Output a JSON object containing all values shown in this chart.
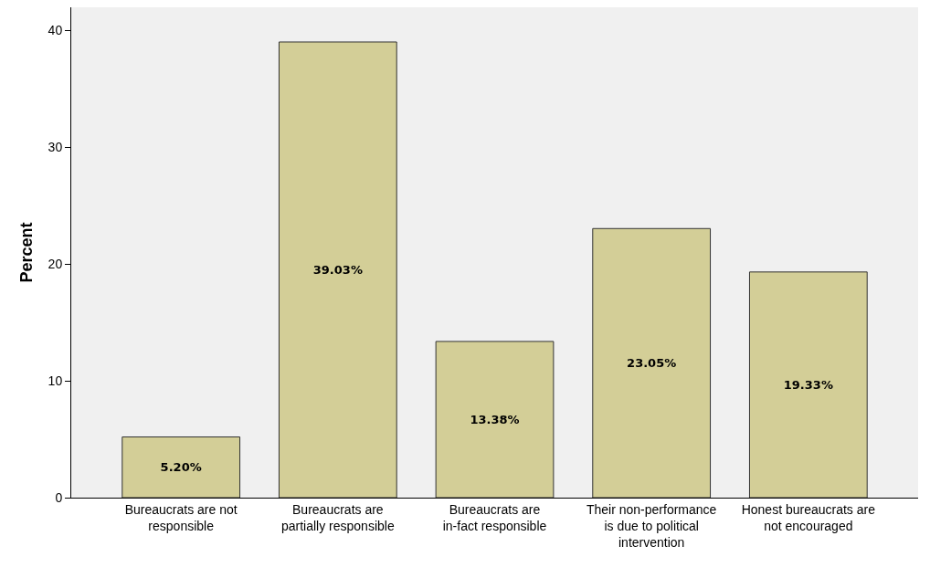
{
  "chart_data": {
    "type": "bar",
    "ylabel": "Percent",
    "categories": [
      "Bureaucrats are not responsible",
      "Bureaucrats are partially responsible",
      "Bureaucrats are in-fact responsible",
      "Their non-performance is due to political intervention",
      "Honest bureaucrats are not encouraged"
    ],
    "values": [
      5.2,
      39.03,
      13.38,
      23.05,
      19.33
    ],
    "value_labels": [
      "5.20%",
      "39.03%",
      "13.38%",
      "23.05%",
      "19.33%"
    ],
    "color": "#d3ce97",
    "ylim": [
      0,
      42
    ],
    "yticks": [
      0,
      10,
      20,
      30,
      40
    ],
    "grid": false
  }
}
